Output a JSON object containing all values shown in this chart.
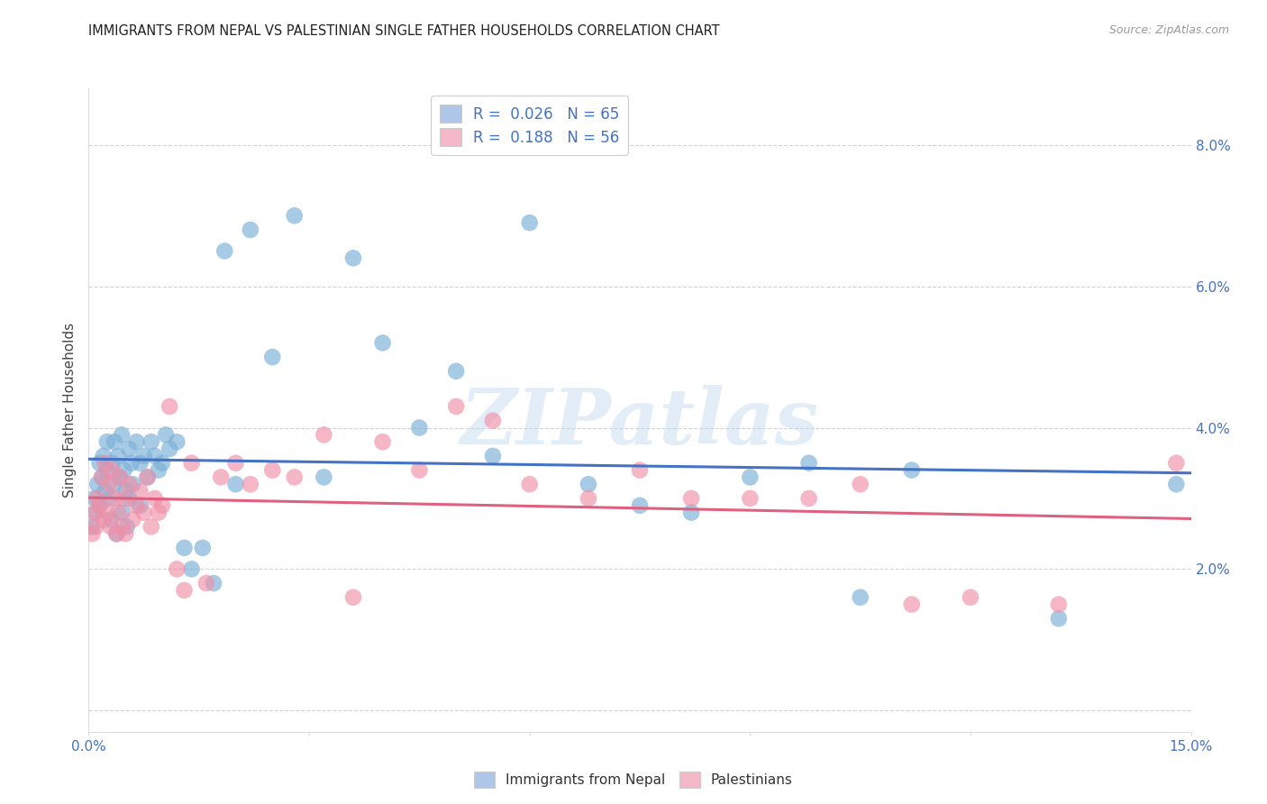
{
  "title": "IMMIGRANTS FROM NEPAL VS PALESTINIAN SINGLE FATHER HOUSEHOLDS CORRELATION CHART",
  "source": "Source: ZipAtlas.com",
  "ylabel": "Single Father Households",
  "xlim": [
    0.0,
    15.0
  ],
  "ylim": [
    -0.3,
    8.8
  ],
  "ytick_vals": [
    0.0,
    2.0,
    4.0,
    6.0,
    8.0
  ],
  "xtick_vals": [
    0.0,
    3.0,
    6.0,
    9.0,
    12.0,
    15.0
  ],
  "legend_entries": [
    {
      "label": "R =  0.026   N = 65",
      "color": "#aec6e8"
    },
    {
      "label": "R =  0.188   N = 56",
      "color": "#f4b8c8"
    }
  ],
  "nepal_color": "#7ab0d8",
  "nepal_line_color": "#4472c4",
  "palestinian_color": "#f090a8",
  "palestinian_line_color": "#e06080",
  "background_color": "#ffffff",
  "grid_color": "#c8c8c8",
  "watermark": "ZIPatlas",
  "nepal_points_x": [
    0.05,
    0.08,
    0.1,
    0.12,
    0.15,
    0.15,
    0.18,
    0.2,
    0.22,
    0.25,
    0.25,
    0.28,
    0.3,
    0.32,
    0.35,
    0.35,
    0.38,
    0.4,
    0.42,
    0.45,
    0.45,
    0.48,
    0.5,
    0.52,
    0.55,
    0.55,
    0.58,
    0.6,
    0.65,
    0.7,
    0.7,
    0.75,
    0.8,
    0.85,
    0.9,
    0.95,
    1.0,
    1.05,
    1.1,
    1.2,
    1.3,
    1.4,
    1.55,
    1.7,
    1.85,
    2.0,
    2.2,
    2.5,
    2.8,
    3.2,
    3.6,
    4.0,
    4.5,
    5.0,
    5.5,
    6.0,
    6.8,
    7.5,
    8.2,
    9.0,
    9.8,
    10.5,
    11.2,
    13.2,
    14.8
  ],
  "nepal_points_y": [
    2.6,
    3.0,
    2.8,
    3.2,
    3.5,
    2.9,
    3.3,
    3.6,
    3.1,
    3.8,
    3.4,
    3.0,
    2.7,
    3.5,
    3.2,
    3.8,
    2.5,
    3.6,
    3.3,
    2.8,
    3.9,
    3.4,
    3.1,
    2.6,
    3.7,
    3.0,
    3.5,
    3.2,
    3.8,
    3.5,
    2.9,
    3.6,
    3.3,
    3.8,
    3.6,
    3.4,
    3.5,
    3.9,
    3.7,
    3.8,
    2.3,
    2.0,
    2.3,
    1.8,
    6.5,
    3.2,
    6.8,
    5.0,
    7.0,
    3.3,
    6.4,
    5.2,
    4.0,
    4.8,
    3.6,
    6.9,
    3.2,
    2.9,
    2.8,
    3.3,
    3.5,
    1.6,
    3.4,
    1.3,
    3.2
  ],
  "palestinian_points_x": [
    0.05,
    0.08,
    0.1,
    0.12,
    0.15,
    0.18,
    0.2,
    0.22,
    0.25,
    0.28,
    0.3,
    0.32,
    0.35,
    0.38,
    0.4,
    0.42,
    0.45,
    0.48,
    0.5,
    0.55,
    0.6,
    0.65,
    0.7,
    0.75,
    0.8,
    0.85,
    0.9,
    0.95,
    1.0,
    1.1,
    1.2,
    1.3,
    1.4,
    1.6,
    1.8,
    2.0,
    2.2,
    2.5,
    2.8,
    3.2,
    3.6,
    4.0,
    4.5,
    5.0,
    5.5,
    6.0,
    6.8,
    7.5,
    8.2,
    9.0,
    9.8,
    10.5,
    11.2,
    12.0,
    13.2,
    14.8
  ],
  "palestinian_points_y": [
    2.5,
    2.8,
    2.6,
    3.0,
    2.9,
    3.3,
    2.7,
    3.5,
    2.8,
    3.2,
    2.6,
    3.4,
    3.0,
    2.5,
    2.8,
    3.3,
    2.6,
    3.0,
    2.5,
    3.2,
    2.7,
    2.9,
    3.1,
    2.8,
    3.3,
    2.6,
    3.0,
    2.8,
    2.9,
    4.3,
    2.0,
    1.7,
    3.5,
    1.8,
    3.3,
    3.5,
    3.2,
    3.4,
    3.3,
    3.9,
    1.6,
    3.8,
    3.4,
    4.3,
    4.1,
    3.2,
    3.0,
    3.4,
    3.0,
    3.0,
    3.0,
    3.2,
    1.5,
    1.6,
    1.5,
    3.5
  ]
}
